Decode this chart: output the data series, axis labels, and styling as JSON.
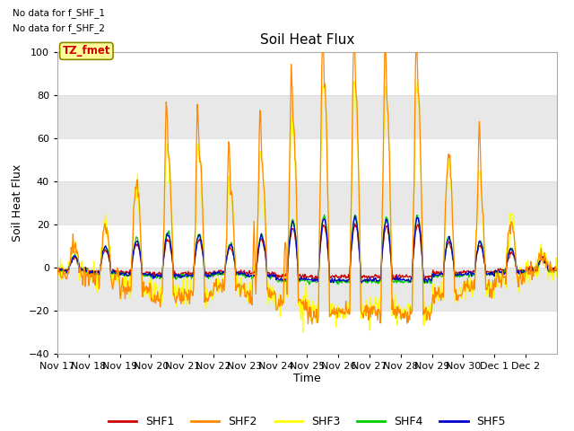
{
  "title": "Soil Heat Flux",
  "ylabel": "Soil Heat Flux",
  "xlabel": "Time",
  "ylim": [
    -40,
    100
  ],
  "no_data_text": [
    "No data for f_SHF_1",
    "No data for f_SHF_2"
  ],
  "annotation_text": "TZ_fmet",
  "annotation_color": "#cc0000",
  "annotation_bg": "#ffff99",
  "bg_color": "#ffffff",
  "plot_bg": "#ffffff",
  "legend_entries": [
    "SHF1",
    "SHF2",
    "SHF3",
    "SHF4",
    "SHF5"
  ],
  "legend_colors": [
    "#cc0000",
    "#ff8800",
    "#ffff00",
    "#00cc00",
    "#0000cc"
  ],
  "x_tick_labels": [
    "Nov 17",
    "Nov 18",
    "Nov 19",
    "Nov 20",
    "Nov 21",
    "Nov 22",
    "Nov 23",
    "Nov 24",
    "Nov 25",
    "Nov 26",
    "Nov 27",
    "Nov 28",
    "Nov 29",
    "Nov 30",
    "Dec 1",
    "Dec 2"
  ],
  "yticks": [
    -40,
    -20,
    0,
    20,
    40,
    60,
    80,
    100
  ],
  "grid_color": "#d8d8d8",
  "line_width": 0.9,
  "figsize": [
    6.4,
    4.8
  ],
  "dpi": 100
}
